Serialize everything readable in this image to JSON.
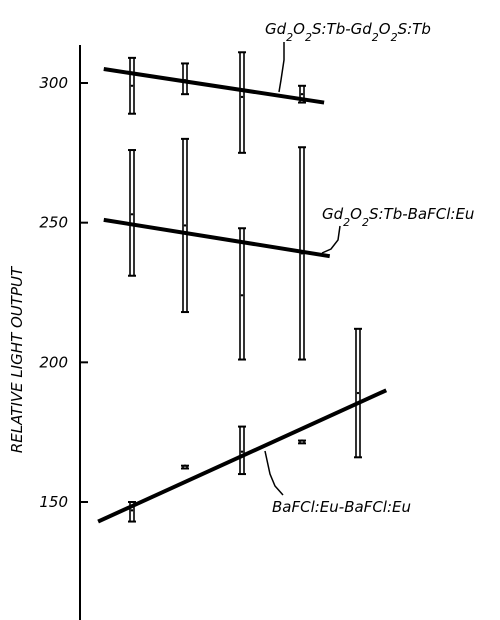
{
  "chart_data": {
    "type": "scatter",
    "title": "",
    "xlabel": "",
    "ylabel": "RELATIVE LIGHT OUTPUT",
    "ylim": [
      100,
      320
    ],
    "yticks": [
      150,
      200,
      250,
      300
    ],
    "grid": false,
    "series": [
      {
        "name": "Gd2O2S:Tb-Gd2O2S:Tb",
        "label_parts": [
          [
            "Gd",
            false
          ],
          [
            "2",
            true
          ],
          [
            "O",
            false
          ],
          [
            "2",
            true
          ],
          [
            "S:Tb-Gd",
            false
          ],
          [
            "2",
            true
          ],
          [
            "O",
            false
          ],
          [
            "2",
            true
          ],
          [
            "S:Tb",
            false
          ]
        ],
        "points": [
          {
            "x": 1,
            "y": 299,
            "low": 289,
            "high": 309
          },
          {
            "x": 2,
            "y": 301,
            "low": 296,
            "high": 307
          },
          {
            "x": 3,
            "y": 295,
            "low": 275,
            "high": 311
          },
          {
            "x": 4,
            "y": 296,
            "low": 293,
            "high": 299
          }
        ],
        "trend": {
          "x": [
            0.5,
            4.4
          ],
          "y": [
            305,
            293
          ]
        }
      },
      {
        "name": "Gd2O2S:Tb-BaFCl:Eu",
        "label_parts": [
          [
            "Gd",
            false
          ],
          [
            "2",
            true
          ],
          [
            "O",
            false
          ],
          [
            "2",
            true
          ],
          [
            "S:Tb-BaFCl:Eu",
            false
          ]
        ],
        "points": [
          {
            "x": 1,
            "y": 253,
            "low": 231,
            "high": 276
          },
          {
            "x": 2,
            "y": 249,
            "low": 218,
            "high": 280
          },
          {
            "x": 3,
            "y": 224,
            "low": 201,
            "high": 248
          },
          {
            "x": 4,
            "y": 239,
            "low": 201,
            "high": 277
          }
        ],
        "trend": {
          "x": [
            0.5,
            4.5
          ],
          "y": [
            251,
            238
          ]
        }
      },
      {
        "name": "BaFCl:Eu-BaFCl:Eu",
        "label_parts": [
          [
            "BaFCl:Eu-BaFCl:Eu",
            false
          ]
        ],
        "points": [
          {
            "x": 1,
            "y": 147,
            "low": 143,
            "high": 150
          },
          {
            "x": 2,
            "y": 163,
            "low": 162,
            "high": 163
          },
          {
            "x": 3,
            "y": 168,
            "low": 160,
            "high": 177
          },
          {
            "x": 4,
            "y": 172,
            "low": 171,
            "high": 172
          },
          {
            "x": 5,
            "y": 189,
            "low": 166,
            "high": 212
          }
        ],
        "trend": {
          "x": [
            0.4,
            5.5
          ],
          "y": [
            143,
            190
          ]
        }
      }
    ]
  }
}
